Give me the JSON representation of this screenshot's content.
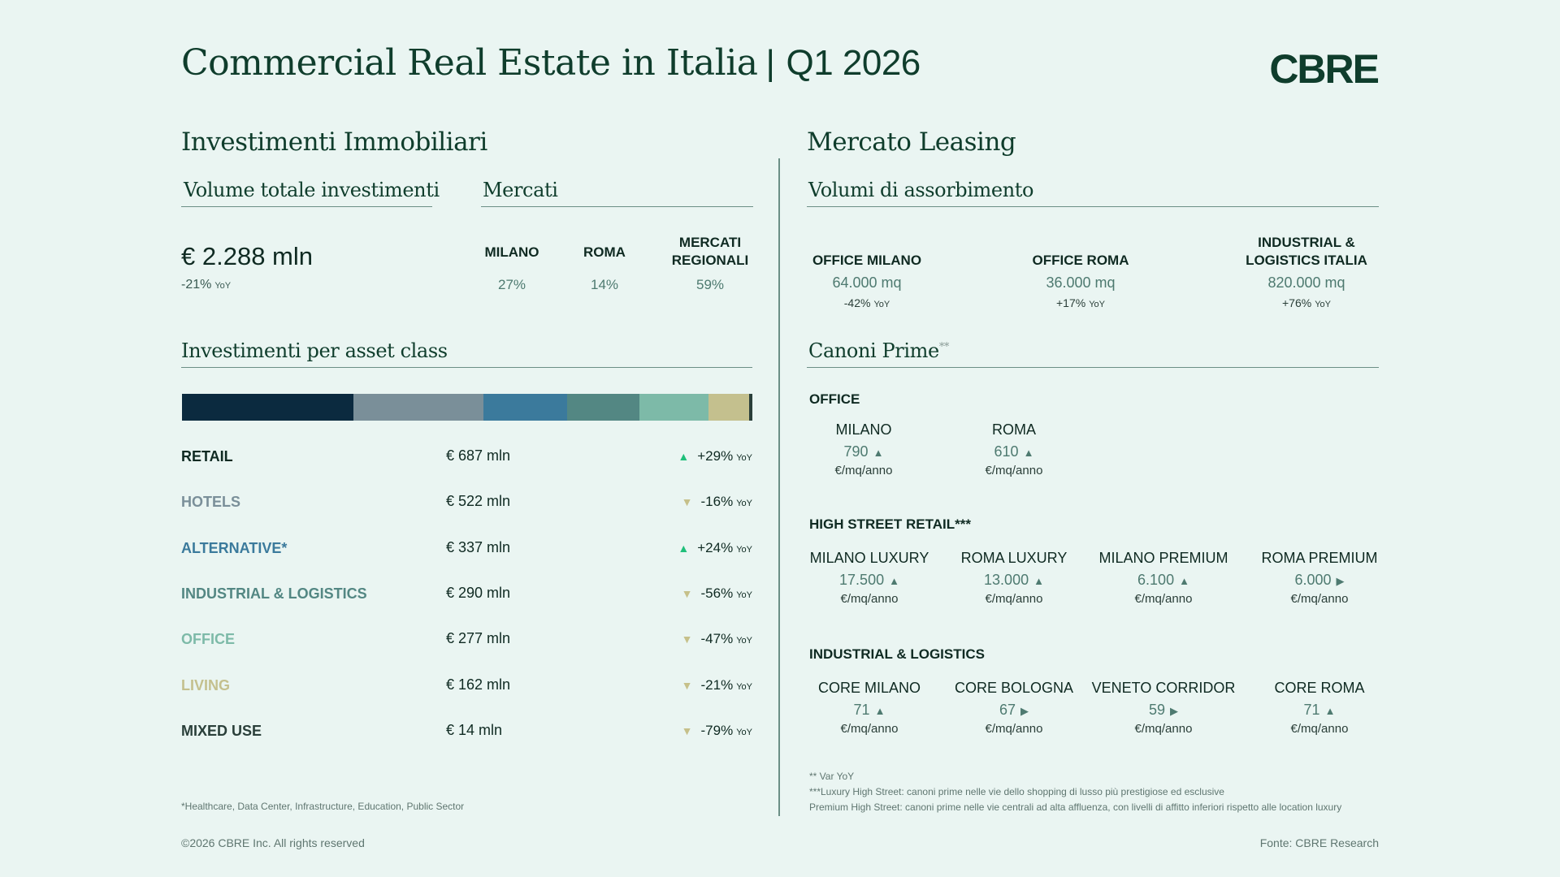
{
  "header": {
    "title": "Commercial Real Estate in Italia",
    "separator": "|",
    "period": "Q1 2026",
    "logo": "CBRE"
  },
  "investments": {
    "heading": "Investimenti Immobiliari",
    "volume_heading": "Volume totale investimenti",
    "markets_heading": "Mercati",
    "total_value": "€ 2.288 mln",
    "total_change": "-21%",
    "yoy": "YoY",
    "markets": [
      {
        "label": "MILANO",
        "value": "27%"
      },
      {
        "label": "ROMA",
        "value": "14%"
      },
      {
        "label_line1": "MERCATI",
        "label_line2": "REGIONALI",
        "value": "59%"
      }
    ],
    "asset_heading": "Investimenti per asset class",
    "asset_classes": [
      {
        "name": "RETAIL",
        "amount": "€ 687 mln",
        "change": "+29%",
        "direction": "up",
        "color": "#0b2a3f",
        "value": 687
      },
      {
        "name": "HOTELS",
        "amount": "€ 522 mln",
        "change": "-16%",
        "direction": "down",
        "color": "#7a8f99",
        "value": 522
      },
      {
        "name": "ALTERNATIVE*",
        "amount": "€ 337 mln",
        "change": "+24%",
        "direction": "up",
        "color": "#3b7a9c",
        "value": 337
      },
      {
        "name": "INDUSTRIAL & LOGISTICS",
        "amount": "€ 290 mln",
        "change": "-56%",
        "direction": "down",
        "color": "#538783",
        "value": 290
      },
      {
        "name": "OFFICE",
        "amount": "€ 277 mln",
        "change": "-47%",
        "direction": "down",
        "color": "#7dbaa8",
        "value": 277
      },
      {
        "name": "LIVING",
        "amount": "€ 162 mln",
        "change": "-21%",
        "direction": "down",
        "color": "#c4c08e",
        "value": 162
      },
      {
        "name": "MIXED USE",
        "amount": "€ 14 mln",
        "change": "-79%",
        "direction": "down",
        "color": "#2a3f3a",
        "value": 14
      }
    ],
    "footnote": "*Healthcare, Data Center, Infrastructure, Education, Public Sector"
  },
  "leasing": {
    "heading": "Mercato Leasing",
    "absorption_heading": "Volumi di assorbimento",
    "absorption": [
      {
        "label_line1": "",
        "label_line2": "OFFICE MILANO",
        "value": "64.000 mq",
        "change": "-42%"
      },
      {
        "label_line1": "",
        "label_line2": "OFFICE ROMA",
        "value": "36.000 mq",
        "change": "+17%"
      },
      {
        "label_line1": "INDUSTRIAL &",
        "label_line2": "LOGISTICS ITALIA",
        "value": "820.000 mq",
        "change": "+76%"
      }
    ],
    "yoy": "YoY",
    "rents_heading": "Canoni Prime",
    "rents_heading_mark": "**",
    "unit": "€/mq/anno",
    "arrow_up": "▲",
    "arrow_right": "▶",
    "office": {
      "label": "OFFICE",
      "items": [
        {
          "city": "MILANO",
          "value": "790",
          "trend": "up"
        },
        {
          "city": "ROMA",
          "value": "610",
          "trend": "up"
        }
      ]
    },
    "high_street": {
      "label": "HIGH STREET RETAIL***",
      "items": [
        {
          "city": "MILANO LUXURY",
          "value": "17.500",
          "trend": "up"
        },
        {
          "city": "ROMA LUXURY",
          "value": "13.000",
          "trend": "up"
        },
        {
          "city": "MILANO PREMIUM",
          "value": "6.100",
          "trend": "up"
        },
        {
          "city": "ROMA PREMIUM",
          "value": "6.000",
          "trend": "flat"
        }
      ]
    },
    "industrial": {
      "label": "INDUSTRIAL & LOGISTICS",
      "items": [
        {
          "city": "CORE MILANO",
          "value": "71",
          "trend": "up"
        },
        {
          "city": "CORE BOLOGNA",
          "value": "67",
          "trend": "flat"
        },
        {
          "city": "VENETO CORRIDOR",
          "value": "59",
          "trend": "flat"
        },
        {
          "city": "CORE ROMA",
          "value": "71",
          "trend": "up"
        }
      ]
    },
    "notes": [
      "** Var YoY",
      "***Luxury High Street: canoni prime nelle vie dello shopping di lusso più prestigiose ed esclusive",
      "Premium High Street: canoni prime nelle vie centrali ad alta affluenza, con livelli di affitto inferiori rispetto alle location luxury"
    ]
  },
  "footer": {
    "copyright": "©2026 CBRE Inc. All rights reserved",
    "source": "Fonte: CBRE Research"
  }
}
